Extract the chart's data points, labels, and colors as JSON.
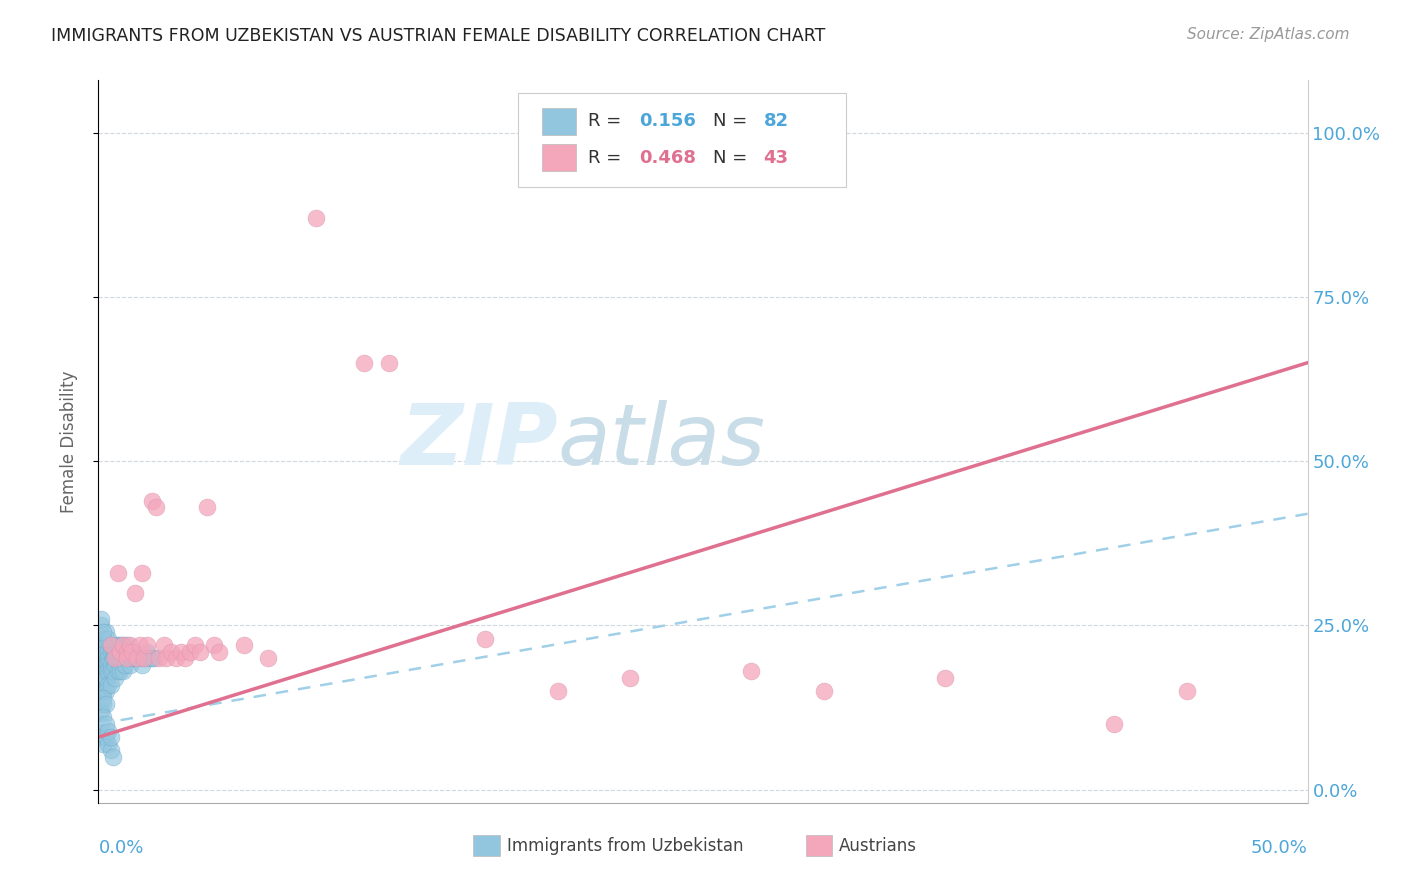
{
  "title": "IMMIGRANTS FROM UZBEKISTAN VS AUSTRIAN FEMALE DISABILITY CORRELATION CHART",
  "source": "Source: ZipAtlas.com",
  "ylabel": "Female Disability",
  "ytick_labels": [
    "100.0%",
    "75.0%",
    "50.0%",
    "25.0%",
    "0.0%"
  ],
  "ytick_values": [
    1.0,
    0.75,
    0.5,
    0.25,
    0.0
  ],
  "xlim": [
    0.0,
    0.5
  ],
  "ylim": [
    -0.02,
    1.08
  ],
  "R_uzbek": 0.156,
  "N_uzbek": 82,
  "R_austrian": 0.468,
  "N_austrian": 43,
  "color_uzbek": "#92c5de",
  "color_uzbek_dark": "#5a9ec4",
  "color_austrian": "#f4a6bb",
  "color_uzbek_line": "#a0cfe8",
  "color_austrian_line": "#e07090",
  "color_blue_text": "#4da6d9",
  "color_pink_text": "#e07090",
  "watermark_color": "#ddeef8",
  "watermark_color2": "#c8dde8",
  "grid_color": "#d0d8e0",
  "uzbek_x": [
    0.0,
    0.001,
    0.001,
    0.001,
    0.001,
    0.001,
    0.001,
    0.002,
    0.002,
    0.002,
    0.002,
    0.002,
    0.002,
    0.002,
    0.003,
    0.003,
    0.003,
    0.003,
    0.003,
    0.003,
    0.004,
    0.004,
    0.004,
    0.004,
    0.004,
    0.005,
    0.005,
    0.005,
    0.005,
    0.005,
    0.006,
    0.006,
    0.006,
    0.006,
    0.007,
    0.007,
    0.007,
    0.007,
    0.008,
    0.008,
    0.008,
    0.009,
    0.009,
    0.009,
    0.01,
    0.01,
    0.01,
    0.011,
    0.011,
    0.012,
    0.012,
    0.013,
    0.013,
    0.014,
    0.015,
    0.015,
    0.016,
    0.017,
    0.018,
    0.019,
    0.02,
    0.021,
    0.022,
    0.023,
    0.001,
    0.002,
    0.003,
    0.004,
    0.002,
    0.003,
    0.001,
    0.002,
    0.003,
    0.004,
    0.005,
    0.006,
    0.002,
    0.003,
    0.004,
    0.005,
    0.001,
    0.002
  ],
  "uzbek_y": [
    0.16,
    0.22,
    0.2,
    0.18,
    0.15,
    0.12,
    0.1,
    0.21,
    0.2,
    0.19,
    0.18,
    0.17,
    0.15,
    0.13,
    0.22,
    0.21,
    0.19,
    0.18,
    0.17,
    0.15,
    0.21,
    0.2,
    0.19,
    0.18,
    0.16,
    0.22,
    0.21,
    0.19,
    0.18,
    0.16,
    0.22,
    0.21,
    0.2,
    0.18,
    0.22,
    0.21,
    0.19,
    0.17,
    0.22,
    0.2,
    0.18,
    0.22,
    0.2,
    0.18,
    0.22,
    0.2,
    0.18,
    0.21,
    0.19,
    0.22,
    0.2,
    0.21,
    0.19,
    0.2,
    0.21,
    0.2,
    0.2,
    0.2,
    0.19,
    0.2,
    0.21,
    0.2,
    0.2,
    0.2,
    0.25,
    0.23,
    0.24,
    0.23,
    0.14,
    0.13,
    0.08,
    0.07,
    0.08,
    0.07,
    0.06,
    0.05,
    0.11,
    0.1,
    0.09,
    0.08,
    0.26,
    0.24
  ],
  "austrian_x": [
    0.005,
    0.007,
    0.008,
    0.009,
    0.01,
    0.012,
    0.012,
    0.013,
    0.014,
    0.015,
    0.016,
    0.017,
    0.018,
    0.019,
    0.02,
    0.022,
    0.024,
    0.025,
    0.027,
    0.028,
    0.03,
    0.032,
    0.034,
    0.036,
    0.038,
    0.04,
    0.042,
    0.045,
    0.048,
    0.05,
    0.06,
    0.07,
    0.09,
    0.11,
    0.12,
    0.16,
    0.19,
    0.22,
    0.27,
    0.3,
    0.35,
    0.42,
    0.45
  ],
  "austrian_y": [
    0.22,
    0.2,
    0.33,
    0.21,
    0.22,
    0.21,
    0.2,
    0.22,
    0.21,
    0.3,
    0.2,
    0.22,
    0.33,
    0.2,
    0.22,
    0.44,
    0.43,
    0.2,
    0.22,
    0.2,
    0.21,
    0.2,
    0.21,
    0.2,
    0.21,
    0.22,
    0.21,
    0.43,
    0.22,
    0.21,
    0.22,
    0.2,
    0.87,
    0.65,
    0.65,
    0.23,
    0.15,
    0.17,
    0.18,
    0.15,
    0.17,
    0.1,
    0.15
  ],
  "line_uzbek_x0": 0.0,
  "line_uzbek_y0": 0.1,
  "line_uzbek_x1": 0.5,
  "line_uzbek_y1": 0.42,
  "line_austrian_x0": 0.0,
  "line_austrian_y0": 0.08,
  "line_austrian_x1": 0.5,
  "line_austrian_y1": 0.65
}
